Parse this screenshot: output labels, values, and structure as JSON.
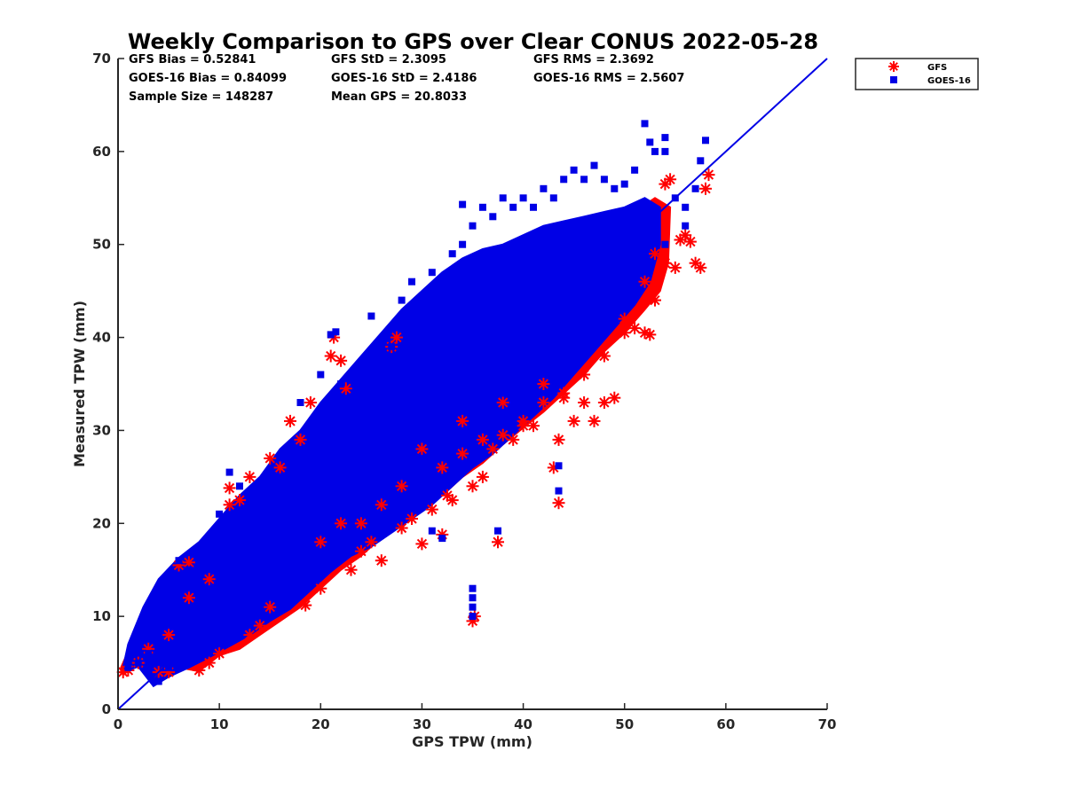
{
  "colors": {
    "gfs": "#ff0000",
    "goes16": "#0000e6",
    "line": "#0000e6",
    "axis": "#262626"
  },
  "chart_data": {
    "type": "scatter",
    "title": "Weekly Comparison to GPS over Clear CONUS 2022-05-28",
    "xlabel": "GPS TPW (mm)",
    "ylabel": "Measured TPW (mm)",
    "xlim": [
      0,
      70
    ],
    "ylim": [
      0,
      70
    ],
    "xticks": [
      0,
      10,
      20,
      30,
      40,
      50,
      60,
      70
    ],
    "yticks": [
      0,
      10,
      20,
      30,
      40,
      50,
      60,
      70
    ],
    "grid": false,
    "legend_position": "top-right-outside",
    "stats": [
      [
        "GFS Bias = 0.52841",
        "GFS StD = 2.3095",
        "GFS RMS = 2.3692"
      ],
      [
        "GOES-16 Bias = 0.84099",
        "GOES-16 StD = 2.4186",
        "GOES-16 RMS = 2.5607"
      ],
      [
        "Sample Size = 148287",
        "Mean GPS = 20.8033",
        ""
      ]
    ],
    "reference_line": {
      "x": [
        0,
        70
      ],
      "y": [
        0,
        70
      ]
    },
    "series": [
      {
        "name": "GFS",
        "marker": "asterisk",
        "points": [
          [
            0.5,
            4
          ],
          [
            1,
            4.2
          ],
          [
            2,
            5
          ],
          [
            3,
            6.5
          ],
          [
            4,
            4
          ],
          [
            5,
            4
          ],
          [
            6,
            15.5
          ],
          [
            7,
            15.8
          ],
          [
            8,
            4.2
          ],
          [
            9,
            5
          ],
          [
            10,
            6
          ],
          [
            11,
            23.8
          ],
          [
            12,
            22.5
          ],
          [
            13,
            8
          ],
          [
            14,
            9
          ],
          [
            15,
            11
          ],
          [
            16,
            26
          ],
          [
            17,
            31
          ],
          [
            18,
            29
          ],
          [
            18.5,
            11.2
          ],
          [
            19,
            33
          ],
          [
            20,
            13
          ],
          [
            21,
            38
          ],
          [
            21.3,
            40
          ],
          [
            22,
            37.5
          ],
          [
            22.5,
            34.5
          ],
          [
            23,
            15
          ],
          [
            24,
            17
          ],
          [
            25,
            18
          ],
          [
            26,
            16
          ],
          [
            27,
            39
          ],
          [
            27.5,
            40
          ],
          [
            28,
            19.5
          ],
          [
            29,
            20.5
          ],
          [
            30,
            17.8
          ],
          [
            31,
            21.5
          ],
          [
            32,
            18.8
          ],
          [
            32.5,
            23
          ],
          [
            33,
            22.5
          ],
          [
            34,
            27.5
          ],
          [
            35,
            24
          ],
          [
            35.2,
            10
          ],
          [
            35,
            9.5
          ],
          [
            36,
            25
          ],
          [
            37,
            28
          ],
          [
            37.5,
            18
          ],
          [
            38,
            29.5
          ],
          [
            39,
            29
          ],
          [
            40,
            31
          ],
          [
            41,
            30.5
          ],
          [
            42,
            33
          ],
          [
            43,
            26
          ],
          [
            43.5,
            29
          ],
          [
            43.5,
            22.2
          ],
          [
            44,
            33.5
          ],
          [
            45,
            31
          ],
          [
            46,
            33
          ],
          [
            47,
            31
          ],
          [
            48,
            33
          ],
          [
            49,
            33.5
          ],
          [
            50,
            40.5
          ],
          [
            51,
            41
          ],
          [
            52,
            40.5
          ],
          [
            52.5,
            40.3
          ],
          [
            53,
            44
          ],
          [
            54,
            48
          ],
          [
            55,
            47.5
          ],
          [
            55.5,
            50.5
          ],
          [
            56,
            51
          ],
          [
            56.5,
            50.3
          ],
          [
            57,
            48
          ],
          [
            57.5,
            47.5
          ],
          [
            58,
            56
          ],
          [
            58.3,
            57.5
          ],
          [
            54,
            56.5
          ],
          [
            54.5,
            57
          ],
          [
            53,
            49
          ],
          [
            52,
            46
          ],
          [
            50,
            42
          ],
          [
            48,
            38
          ],
          [
            46,
            36
          ],
          [
            44,
            34
          ],
          [
            42,
            35
          ],
          [
            40,
            30.5
          ],
          [
            38,
            33
          ],
          [
            36,
            29
          ],
          [
            34,
            31
          ],
          [
            32,
            26
          ],
          [
            30,
            28
          ],
          [
            28,
            24
          ],
          [
            26,
            22
          ],
          [
            24,
            20
          ],
          [
            22,
            20
          ],
          [
            20,
            18
          ],
          [
            15,
            27
          ],
          [
            13,
            25
          ],
          [
            11,
            22
          ],
          [
            9,
            14
          ],
          [
            7,
            12
          ],
          [
            5,
            8
          ]
        ]
      },
      {
        "name": "GOES-16",
        "marker": "square",
        "points": [
          [
            1,
            4.5
          ],
          [
            2,
            5
          ],
          [
            3,
            6
          ],
          [
            4,
            3
          ],
          [
            5,
            4.5
          ],
          [
            6,
            16
          ],
          [
            7,
            15
          ],
          [
            8,
            13
          ],
          [
            9,
            16
          ],
          [
            10,
            21
          ],
          [
            11,
            25.5
          ],
          [
            12,
            24
          ],
          [
            13,
            20
          ],
          [
            14,
            22
          ],
          [
            15,
            23
          ],
          [
            16,
            25
          ],
          [
            17,
            28
          ],
          [
            18,
            33
          ],
          [
            19,
            30
          ],
          [
            20,
            36
          ],
          [
            21,
            40.3
          ],
          [
            21.5,
            40.6
          ],
          [
            22,
            35
          ],
          [
            23,
            30
          ],
          [
            24,
            34
          ],
          [
            25,
            42.3
          ],
          [
            26,
            38
          ],
          [
            27,
            39
          ],
          [
            28,
            44
          ],
          [
            29,
            46
          ],
          [
            30,
            44
          ],
          [
            31,
            47
          ],
          [
            32,
            42
          ],
          [
            33,
            49
          ],
          [
            34,
            50
          ],
          [
            35,
            52
          ],
          [
            36,
            54
          ],
          [
            37,
            53
          ],
          [
            38,
            55
          ],
          [
            39,
            54
          ],
          [
            40,
            55
          ],
          [
            41,
            54
          ],
          [
            42,
            56
          ],
          [
            43,
            55
          ],
          [
            44,
            57
          ],
          [
            45,
            58
          ],
          [
            46,
            57
          ],
          [
            47,
            58.5
          ],
          [
            48,
            57
          ],
          [
            49,
            56
          ],
          [
            50,
            56.5
          ],
          [
            51,
            58
          ],
          [
            52,
            63
          ],
          [
            52.5,
            61
          ],
          [
            53,
            60
          ],
          [
            54,
            61.5
          ],
          [
            54,
            60
          ],
          [
            55,
            55
          ],
          [
            56,
            54
          ],
          [
            57,
            56
          ],
          [
            57.5,
            59
          ],
          [
            58,
            61.2
          ],
          [
            34,
            54.3
          ],
          [
            35,
            13
          ],
          [
            35,
            12
          ],
          [
            35,
            11
          ],
          [
            35,
            10
          ],
          [
            43.5,
            23.5
          ],
          [
            43.5,
            26.2
          ],
          [
            37.5,
            19.2
          ],
          [
            32,
            18.4
          ],
          [
            31,
            19.2
          ],
          [
            30,
            27
          ],
          [
            33,
            27
          ],
          [
            34,
            26
          ],
          [
            36,
            31
          ],
          [
            38,
            34
          ],
          [
            40,
            36
          ],
          [
            42,
            38
          ],
          [
            44,
            40
          ],
          [
            46,
            42
          ],
          [
            48,
            45
          ],
          [
            50,
            47
          ],
          [
            52,
            48
          ],
          [
            54,
            50
          ],
          [
            56,
            52
          ],
          [
            26,
            28
          ],
          [
            24,
            26
          ],
          [
            22,
            22
          ],
          [
            20,
            20
          ]
        ]
      }
    ],
    "bands": [
      {
        "series": "GFS",
        "polygon": [
          [
            0.3,
            3.8
          ],
          [
            2,
            5
          ],
          [
            4,
            4.3
          ],
          [
            6,
            4.5
          ],
          [
            8,
            4.1
          ],
          [
            10,
            5.8
          ],
          [
            12,
            6.5
          ],
          [
            14,
            8
          ],
          [
            16,
            9.5
          ],
          [
            18,
            11
          ],
          [
            20,
            13
          ],
          [
            22,
            15
          ],
          [
            24,
            16.5
          ],
          [
            26,
            18.5
          ],
          [
            28,
            20
          ],
          [
            30,
            21.5
          ],
          [
            32,
            23
          ],
          [
            34,
            25
          ],
          [
            36,
            26.5
          ],
          [
            38,
            28.5
          ],
          [
            40,
            30.3
          ],
          [
            42,
            32
          ],
          [
            44,
            34
          ],
          [
            46,
            36
          ],
          [
            48,
            38.5
          ],
          [
            50,
            40.5
          ],
          [
            52,
            43
          ],
          [
            53.5,
            45
          ],
          [
            54.3,
            48
          ],
          [
            54.5,
            54
          ],
          [
            53,
            55
          ],
          [
            51,
            53.5
          ],
          [
            49,
            52
          ],
          [
            47,
            51
          ],
          [
            45,
            50
          ],
          [
            43,
            49
          ],
          [
            41,
            48
          ],
          [
            39,
            46.5
          ],
          [
            37,
            45
          ],
          [
            35,
            43.5
          ],
          [
            33,
            42
          ],
          [
            31,
            40
          ],
          [
            29,
            38.5
          ],
          [
            27,
            37
          ],
          [
            25,
            35
          ],
          [
            23,
            33
          ],
          [
            21,
            30.5
          ],
          [
            19,
            28
          ],
          [
            17,
            26
          ],
          [
            15,
            24
          ],
          [
            13,
            22.5
          ],
          [
            11,
            20.5
          ],
          [
            9,
            17
          ],
          [
            7,
            15.6
          ],
          [
            5,
            14
          ],
          [
            3,
            10
          ],
          [
            1.5,
            7.5
          ],
          [
            0.3,
            4.5
          ]
        ]
      },
      {
        "series": "GOES-16",
        "polygon": [
          [
            0.5,
            4
          ],
          [
            2,
            4.6
          ],
          [
            3.5,
            2.5
          ],
          [
            5,
            3.5
          ],
          [
            7,
            4.5
          ],
          [
            9,
            5.6
          ],
          [
            11,
            6.8
          ],
          [
            13,
            8
          ],
          [
            15,
            9.5
          ],
          [
            17,
            10.8
          ],
          [
            19,
            12.8
          ],
          [
            21,
            14.8
          ],
          [
            23,
            16.5
          ],
          [
            25,
            17.5
          ],
          [
            27,
            19
          ],
          [
            29,
            20.5
          ],
          [
            31,
            22
          ],
          [
            33,
            24
          ],
          [
            35,
            26
          ],
          [
            37,
            27.5
          ],
          [
            39,
            29.5
          ],
          [
            41,
            31.5
          ],
          [
            43,
            33.5
          ],
          [
            45,
            36
          ],
          [
            47,
            38.5
          ],
          [
            49,
            41
          ],
          [
            51,
            43.5
          ],
          [
            52.5,
            46
          ],
          [
            53.5,
            50
          ],
          [
            53.5,
            54
          ],
          [
            52,
            55
          ],
          [
            50,
            54
          ],
          [
            48,
            53.5
          ],
          [
            46,
            53
          ],
          [
            44,
            52.5
          ],
          [
            42,
            52
          ],
          [
            40,
            51
          ],
          [
            38,
            50
          ],
          [
            36,
            49.5
          ],
          [
            34,
            48.5
          ],
          [
            32,
            47
          ],
          [
            30,
            45
          ],
          [
            28,
            43
          ],
          [
            26,
            40.5
          ],
          [
            24,
            38
          ],
          [
            22,
            35.5
          ],
          [
            20,
            33
          ],
          [
            18,
            30
          ],
          [
            16,
            28
          ],
          [
            14,
            25
          ],
          [
            12,
            23
          ],
          [
            10,
            20.5
          ],
          [
            8,
            18
          ],
          [
            6,
            16.3
          ],
          [
            4,
            14
          ],
          [
            2.5,
            11
          ],
          [
            1,
            7
          ],
          [
            0.5,
            4.5
          ]
        ]
      }
    ]
  }
}
